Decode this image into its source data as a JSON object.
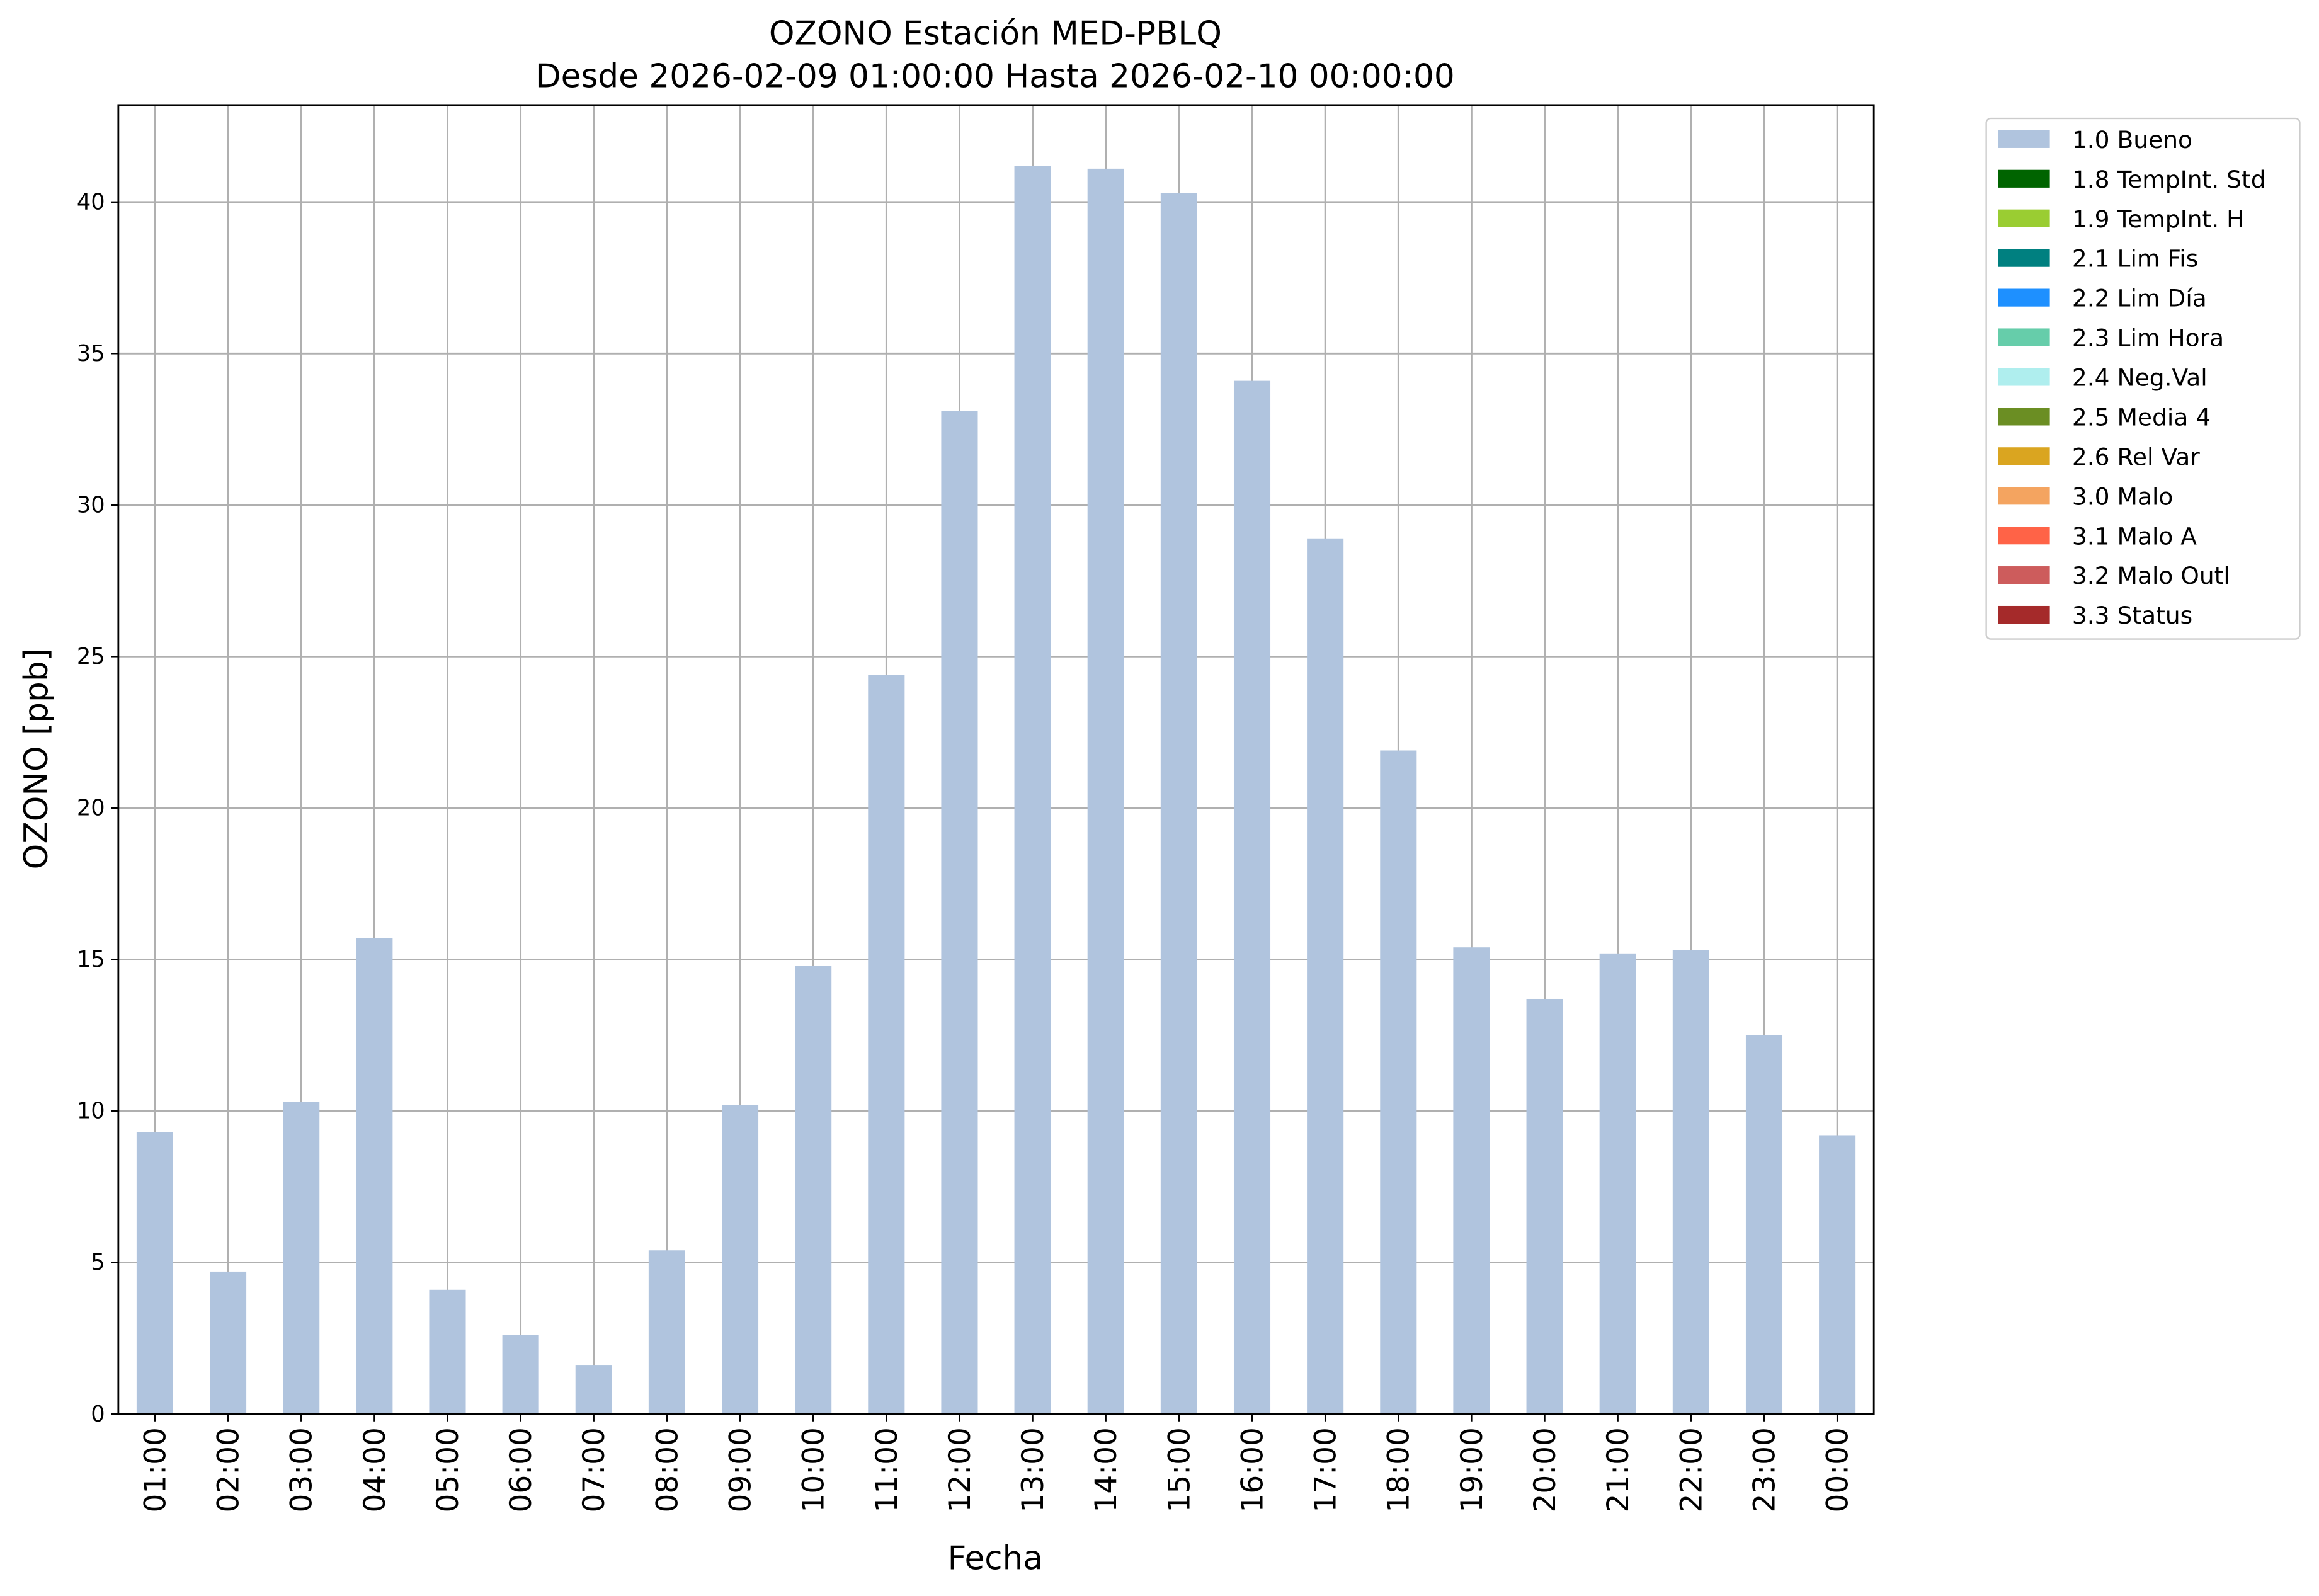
{
  "chart_data": {
    "type": "bar",
    "stacked": true,
    "title": "OZONO Estación MED-PBLQ",
    "subtitle": "Desde 2026-02-09 01:00:00 Hasta 2026-02-10 00:00:00",
    "x_label": "Fecha",
    "y_label": "OZONO [ppb]",
    "categories": [
      "01:00",
      "02:00",
      "03:00",
      "04:00",
      "05:00",
      "06:00",
      "07:00",
      "08:00",
      "09:00",
      "10:00",
      "11:00",
      "12:00",
      "13:00",
      "14:00",
      "15:00",
      "16:00",
      "17:00",
      "18:00",
      "19:00",
      "20:00",
      "21:00",
      "22:00",
      "23:00",
      "00:00"
    ],
    "series": [
      {
        "name": "1.0 Bueno",
        "color": "#b0c4de",
        "values": [
          9.3,
          4.7,
          10.3,
          15.7,
          4.1,
          2.6,
          1.6,
          5.4,
          10.2,
          14.8,
          24.4,
          33.1,
          41.2,
          41.1,
          40.3,
          34.1,
          28.9,
          21.9,
          15.4,
          13.7,
          15.2,
          15.3,
          12.5,
          9.2
        ]
      },
      {
        "name": "1.8 TempInt. Std",
        "color": "#006400",
        "values": [
          null,
          null,
          null,
          null,
          null,
          null,
          null,
          null,
          null,
          null,
          null,
          null,
          null,
          null,
          null,
          null,
          null,
          null,
          null,
          null,
          null,
          null,
          null,
          null
        ]
      },
      {
        "name": "1.9 TempInt. H",
        "color": "#9acd32",
        "values": [
          null,
          null,
          null,
          null,
          null,
          null,
          null,
          null,
          null,
          null,
          null,
          null,
          null,
          null,
          null,
          null,
          null,
          null,
          null,
          null,
          null,
          null,
          null,
          null
        ]
      },
      {
        "name": "2.1 Lim Fis",
        "color": "#008080",
        "values": [
          null,
          null,
          null,
          null,
          null,
          null,
          null,
          null,
          null,
          null,
          null,
          null,
          null,
          null,
          null,
          null,
          null,
          null,
          null,
          null,
          null,
          null,
          null,
          null
        ]
      },
      {
        "name": "2.2 Lim Día",
        "color": "#1e90ff",
        "values": [
          null,
          null,
          null,
          null,
          null,
          null,
          null,
          null,
          null,
          null,
          null,
          null,
          null,
          null,
          null,
          null,
          null,
          null,
          null,
          null,
          null,
          null,
          null,
          null
        ]
      },
      {
        "name": "2.3 Lim Hora",
        "color": "#66cdaa",
        "values": [
          null,
          null,
          null,
          null,
          null,
          null,
          null,
          null,
          null,
          null,
          null,
          null,
          null,
          null,
          null,
          null,
          null,
          null,
          null,
          null,
          null,
          null,
          null,
          null
        ]
      },
      {
        "name": "2.4 Neg.Val",
        "color": "#afeeee",
        "values": [
          null,
          null,
          null,
          null,
          null,
          null,
          null,
          null,
          null,
          null,
          null,
          null,
          null,
          null,
          null,
          null,
          null,
          null,
          null,
          null,
          null,
          null,
          null,
          null
        ]
      },
      {
        "name": "2.5 Media 4",
        "color": "#6b8e23",
        "values": [
          null,
          null,
          null,
          null,
          null,
          null,
          null,
          null,
          null,
          null,
          null,
          null,
          null,
          null,
          null,
          null,
          null,
          null,
          null,
          null,
          null,
          null,
          null,
          null
        ]
      },
      {
        "name": "2.6 Rel Var",
        "color": "#daa520",
        "values": [
          null,
          null,
          null,
          null,
          null,
          null,
          null,
          null,
          null,
          null,
          null,
          null,
          null,
          null,
          null,
          null,
          null,
          null,
          null,
          null,
          null,
          null,
          null,
          null
        ]
      },
      {
        "name": "3.0 Malo",
        "color": "#f4a460",
        "values": [
          null,
          null,
          null,
          null,
          null,
          null,
          null,
          null,
          null,
          null,
          null,
          null,
          null,
          null,
          null,
          null,
          null,
          null,
          null,
          null,
          null,
          null,
          null,
          null
        ]
      },
      {
        "name": "3.1 Malo A",
        "color": "#ff6347",
        "values": [
          null,
          null,
          null,
          null,
          null,
          null,
          null,
          null,
          null,
          null,
          null,
          null,
          null,
          null,
          null,
          null,
          null,
          null,
          null,
          null,
          null,
          null,
          null,
          null
        ]
      },
      {
        "name": "3.2 Malo Outl",
        "color": "#cd5c5c",
        "values": [
          null,
          null,
          null,
          null,
          null,
          null,
          null,
          null,
          null,
          null,
          null,
          null,
          null,
          null,
          null,
          null,
          null,
          null,
          null,
          null,
          null,
          null,
          null,
          null
        ]
      },
      {
        "name": "3.3 Status",
        "color": "#a52a2a",
        "values": [
          null,
          null,
          null,
          null,
          null,
          null,
          null,
          null,
          null,
          null,
          null,
          null,
          null,
          null,
          null,
          null,
          null,
          null,
          null,
          null,
          null,
          null,
          null,
          null
        ]
      }
    ],
    "ylim": [
      0,
      43.2
    ],
    "yticks": [
      0,
      5,
      10,
      15,
      20,
      25,
      30,
      35,
      40
    ],
    "grid": true,
    "legend": "outside-upper-right"
  }
}
